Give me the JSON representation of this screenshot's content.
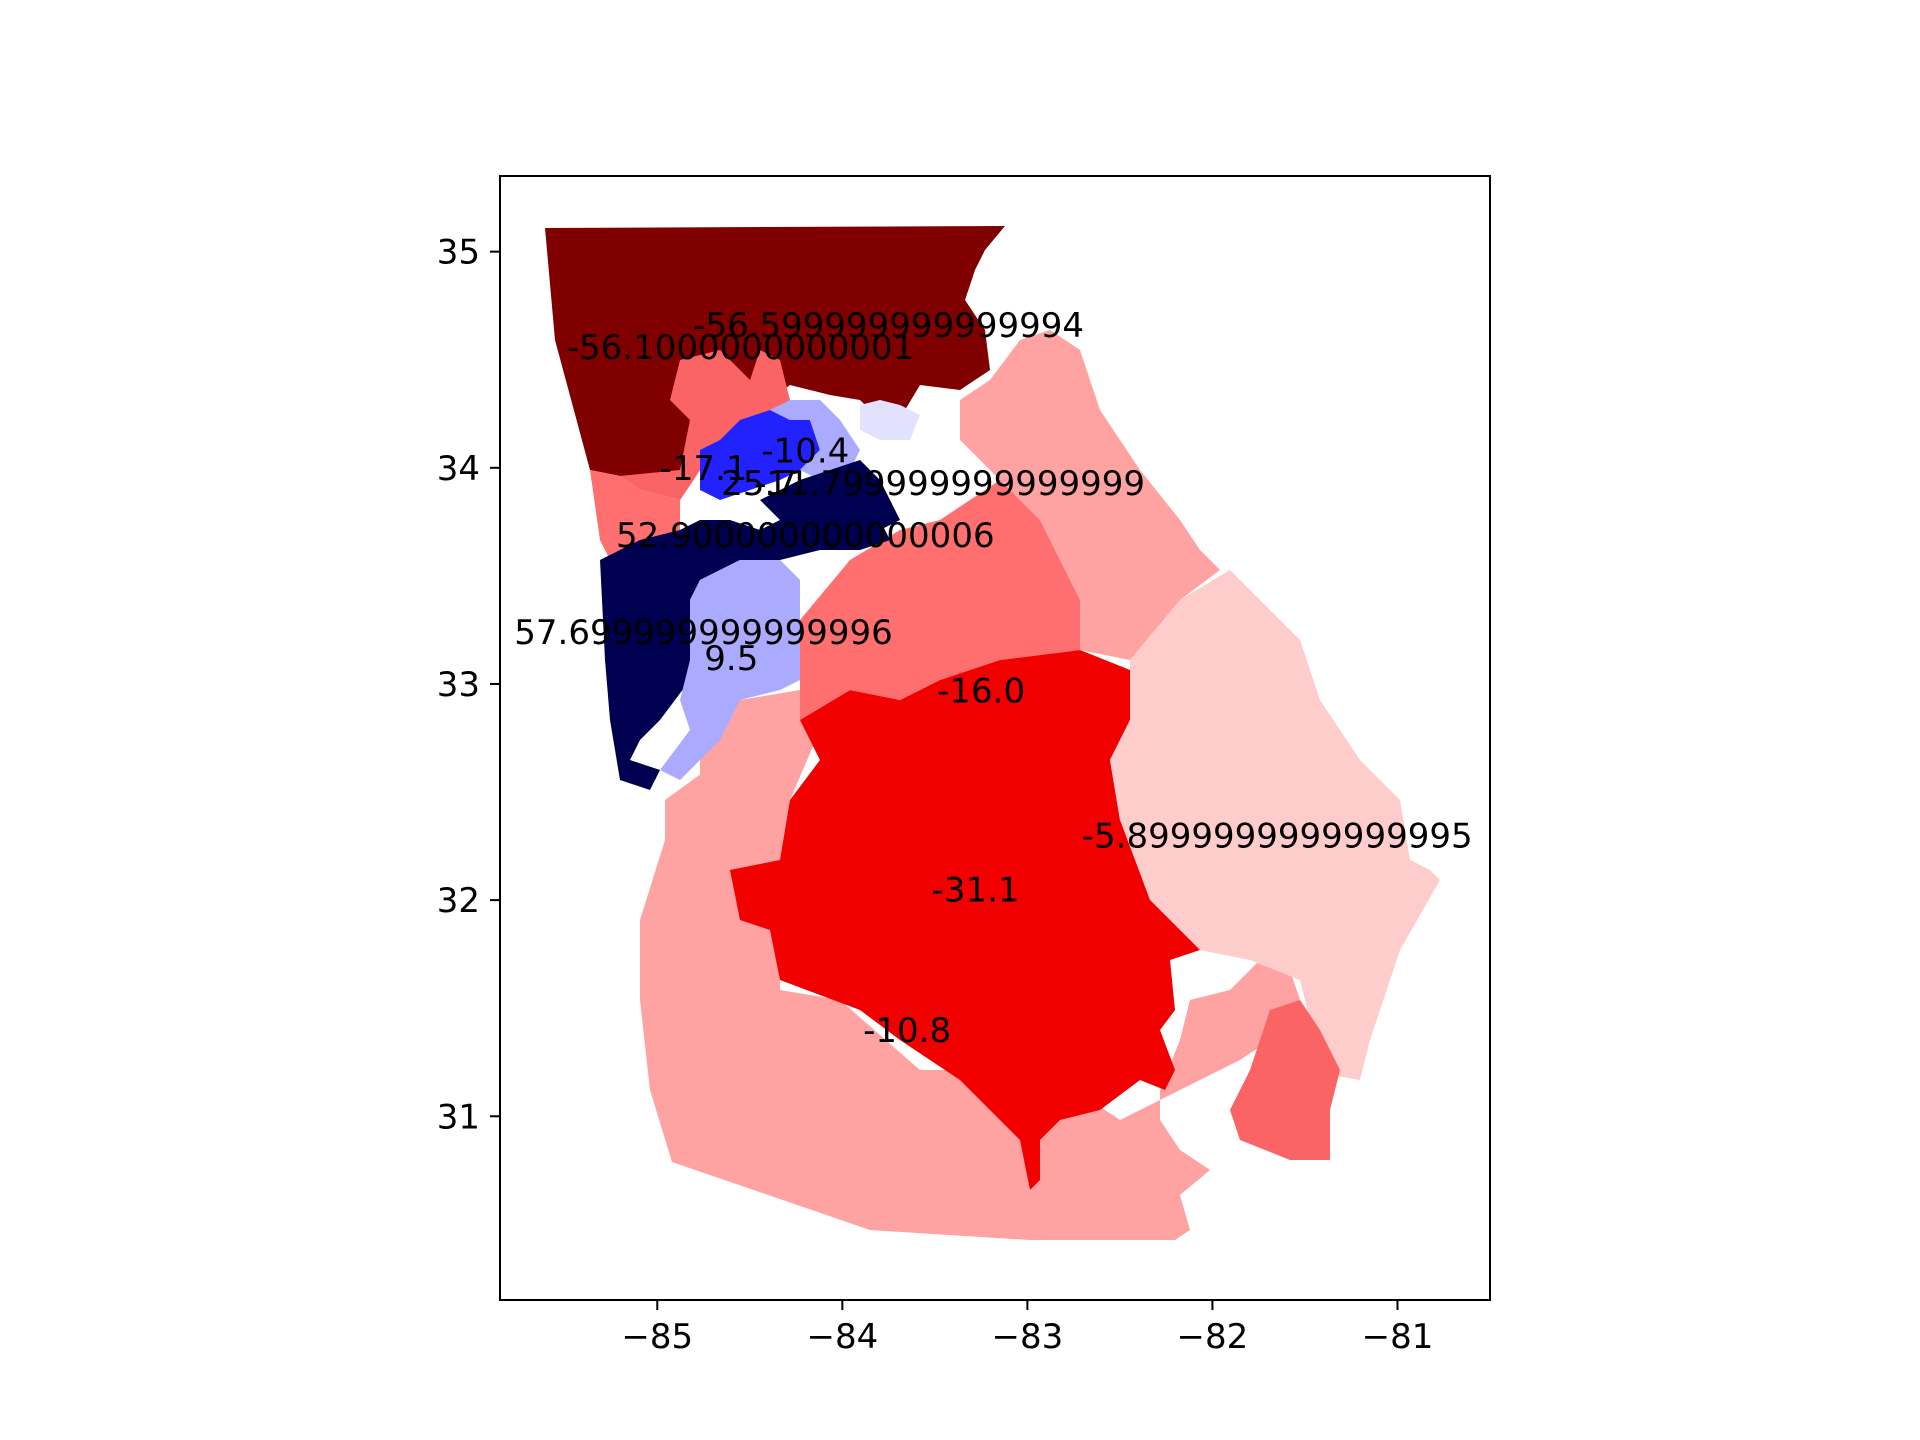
{
  "figure": {
    "type": "choropleth-map",
    "background": "#ffffff",
    "axes": {
      "xlim": [
        -85.85,
        -80.5
      ],
      "ylim": [
        30.15,
        35.35
      ],
      "xticks": [
        {
          "value": -85,
          "label": "−85"
        },
        {
          "value": -84,
          "label": "−84"
        },
        {
          "value": -83,
          "label": "−83"
        },
        {
          "value": -82,
          "label": "−82"
        },
        {
          "value": -81,
          "label": "−81"
        }
      ],
      "yticks": [
        {
          "value": 35,
          "label": "35"
        },
        {
          "value": 34,
          "label": "34"
        },
        {
          "value": 33,
          "label": "33"
        },
        {
          "value": 32,
          "label": "32"
        },
        {
          "value": 31,
          "label": "31"
        }
      ]
    },
    "colors": {
      "dark_red": "#800000",
      "red": "#f20000",
      "light_red": "#ff6f6f",
      "pale_red": "#ffa2a2",
      "very_pale_red": "#ffcccc",
      "salmon": "#fa6464",
      "dark_navy": "#000050",
      "blue": "#2222ff",
      "light_blue": "#aaaaff",
      "very_light_blue": "#e2e2ff"
    },
    "district_labels": [
      {
        "id": "d14",
        "text": "-56.599999999999994",
        "lon": -83.75,
        "lat": 34.66
      },
      {
        "id": "d9",
        "text": "-56.1000000000001",
        "lon": -84.55,
        "lat": 34.56
      },
      {
        "id": "d11",
        "text": "-17.1",
        "lon": -84.75,
        "lat": 34.0
      },
      {
        "id": "d6",
        "text": "-10.4",
        "lon": -84.2,
        "lat": 34.08
      },
      {
        "id": "d4",
        "text": "25.7",
        "lon": -84.45,
        "lat": 33.93
      },
      {
        "id": "d10",
        "text": "-11.799999999999999",
        "lon": -83.42,
        "lat": 33.93
      },
      {
        "id": "d5",
        "text": "52.900000000000006",
        "lon": -84.2,
        "lat": 33.69
      },
      {
        "id": "d13",
        "text": "57.699999999999996",
        "lon": -84.75,
        "lat": 33.24
      },
      {
        "id": "d3",
        "text": "9.5",
        "lon": -84.6,
        "lat": 33.12
      },
      {
        "id": "d8",
        "text": "-16.0",
        "lon": -83.25,
        "lat": 32.97
      },
      {
        "id": "d12",
        "text": "-5.8999999999999995",
        "lon": -81.65,
        "lat": 32.3
      },
      {
        "id": "d1",
        "text": "-31.1",
        "lon": -83.28,
        "lat": 32.05
      },
      {
        "id": "d2",
        "text": "-10.8",
        "lon": -83.65,
        "lat": 31.4
      }
    ]
  }
}
